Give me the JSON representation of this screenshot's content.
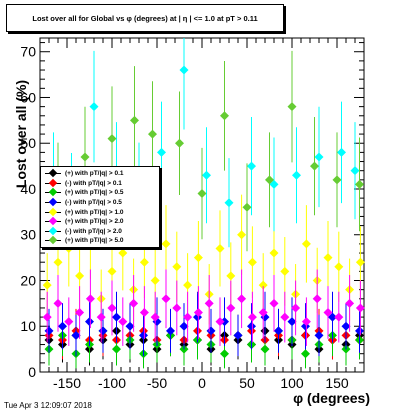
{
  "title": "Lost over all for Global vs φ (degrees) at | η | <= 1.0 at pT > 0.11",
  "timestamp": "Tue Apr  3 12:09:07 2018",
  "colors": {
    "frame": "#000000",
    "background": "#ffffff"
  },
  "chart_data": {
    "type": "scatter",
    "title": "Lost over all for Global vs φ (degrees) at | η | <= 1.0 at pT > 0.11",
    "xlabel": "φ (degrees)",
    "ylabel": "Lost over all (%)",
    "xlim": [
      -180,
      180
    ],
    "ylim": [
      0,
      73
    ],
    "xticks": [
      -150,
      -100,
      -50,
      0,
      50,
      100,
      150
    ],
    "yticks": [
      0,
      10,
      20,
      30,
      40,
      50,
      60,
      70
    ],
    "grid": false,
    "legend_position": "left-middle",
    "series": [
      {
        "name": "(+) with pT/|q| > 0.1",
        "color": "#000000",
        "x": [
          -170,
          -155,
          -140,
          -125,
          -110,
          -95,
          -80,
          -65,
          -50,
          -35,
          -20,
          -5,
          10,
          25,
          40,
          55,
          70,
          85,
          100,
          115,
          130,
          145,
          160,
          175
        ],
        "y": [
          7,
          6,
          8,
          5,
          7,
          9,
          6,
          7,
          5,
          8,
          6,
          7,
          5,
          8,
          7,
          6,
          9,
          7,
          6,
          8,
          5,
          7,
          6,
          8
        ]
      },
      {
        "name": "(-) with pT/|q| > 0.1",
        "color": "#ff0000",
        "x": [
          -170,
          -155,
          -140,
          -125,
          -110,
          -95,
          -80,
          -65,
          -50,
          -35,
          -20,
          -5,
          10,
          25,
          40,
          55,
          70,
          85,
          100,
          115,
          130,
          145,
          160,
          175
        ],
        "y": [
          8,
          7,
          9,
          7,
          8,
          7,
          8,
          9,
          7,
          8,
          7,
          9,
          8,
          7,
          8,
          9,
          7,
          8,
          7,
          8,
          9,
          7,
          8,
          7
        ]
      },
      {
        "name": "(+) with pT/|q| > 0.5",
        "color": "#00cc00",
        "x": [
          -170,
          -155,
          -140,
          -125,
          -110,
          -95,
          -80,
          -65,
          -50,
          -35,
          -20,
          -5,
          10,
          25,
          40,
          55,
          70,
          85,
          100,
          115,
          130,
          145,
          160,
          175
        ],
        "y": [
          5,
          8,
          4,
          6,
          9,
          5,
          7,
          4,
          6,
          8,
          5,
          7,
          6,
          4,
          8,
          6,
          5,
          9,
          7,
          4,
          6,
          8,
          5,
          7
        ]
      },
      {
        "name": "(-) with pT/|q| > 0.5",
        "color": "#0000ff",
        "x": [
          -170,
          -155,
          -140,
          -125,
          -110,
          -95,
          -80,
          -65,
          -50,
          -35,
          -20,
          -5,
          10,
          25,
          40,
          55,
          70,
          85,
          100,
          115,
          130,
          145,
          160,
          175
        ],
        "y": [
          9,
          10,
          8,
          11,
          9,
          12,
          10,
          8,
          11,
          9,
          10,
          12,
          9,
          11,
          8,
          10,
          12,
          9,
          11,
          10,
          8,
          12,
          10,
          9
        ]
      },
      {
        "name": "(+) with pT/|q| > 1.0",
        "color": "#ffff00",
        "x": [
          -172,
          -160,
          -148,
          -136,
          -124,
          -112,
          -100,
          -88,
          -76,
          -64,
          -52,
          -40,
          -28,
          -16,
          -4,
          8,
          20,
          32,
          44,
          56,
          68,
          80,
          92,
          104,
          116,
          128,
          140,
          152,
          164,
          176
        ],
        "y": [
          19,
          24,
          27,
          21,
          29,
          16,
          22,
          26,
          18,
          24,
          20,
          28,
          23,
          19,
          25,
          17,
          27,
          21,
          30,
          24,
          19,
          26,
          22,
          17,
          28,
          20,
          25,
          23,
          18,
          24
        ]
      },
      {
        "name": "(+) with pT/|q| > 2.0",
        "color": "#ff00ff",
        "x": [
          -172,
          -160,
          -148,
          -136,
          -124,
          -112,
          -100,
          -88,
          -76,
          -64,
          -52,
          -40,
          -28,
          -16,
          -4,
          8,
          20,
          32,
          44,
          56,
          68,
          80,
          92,
          104,
          116,
          128,
          140,
          152,
          164,
          176
        ],
        "y": [
          12,
          15,
          11,
          13,
          16,
          12,
          14,
          11,
          15,
          13,
          12,
          16,
          14,
          12,
          13,
          15,
          11,
          14,
          16,
          12,
          13,
          15,
          12,
          14,
          11,
          16,
          13,
          12,
          15,
          14
        ]
      },
      {
        "name": "(-) with pT/|q| > 2.0",
        "color": "#00ffff",
        "x": [
          -165,
          -145,
          -120,
          -95,
          -70,
          -45,
          -20,
          5,
          30,
          55,
          80,
          105,
          130,
          155,
          170
        ],
        "y": [
          42,
          38,
          58,
          44,
          40,
          48,
          66,
          43,
          37,
          45,
          41,
          43,
          47,
          48,
          44
        ]
      },
      {
        "name": "(+) with pT/|q| > 5.0",
        "color": "#66cc33",
        "x": [
          -160,
          -130,
          -100,
          -75,
          -55,
          -25,
          0,
          25,
          50,
          75,
          100,
          125,
          150,
          175
        ],
        "y": [
          40,
          47,
          51,
          55,
          52,
          50,
          39,
          56,
          36,
          42,
          58,
          45,
          42,
          41
        ]
      }
    ]
  }
}
